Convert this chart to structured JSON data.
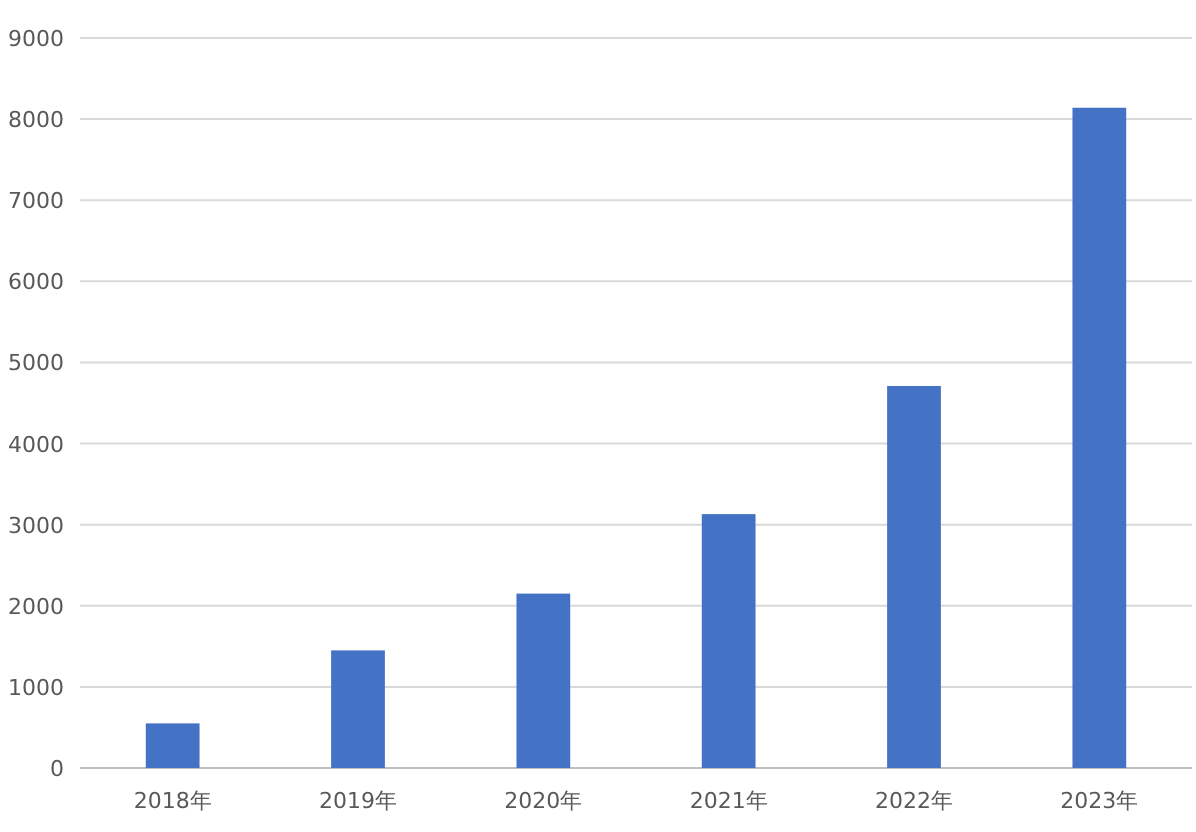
{
  "chart_data": {
    "type": "bar",
    "categories": [
      "2018年",
      "2019年",
      "2020年",
      "2021年",
      "2022年",
      "2023年"
    ],
    "values": [
      550,
      1450,
      2150,
      3130,
      4710,
      8140
    ],
    "color": "#4472c4",
    "ylim": [
      0,
      9000
    ],
    "yticks": [
      0,
      1000,
      2000,
      3000,
      4000,
      5000,
      6000,
      7000,
      8000,
      9000
    ],
    "grid": "y"
  }
}
